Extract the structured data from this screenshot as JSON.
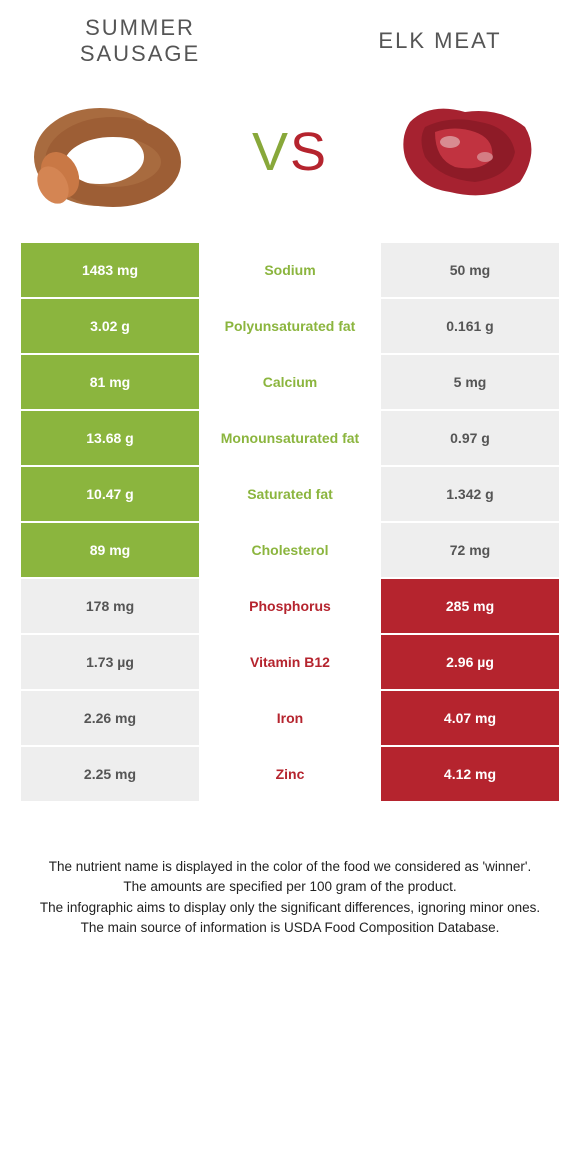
{
  "header": {
    "left_title": "Summer sausage",
    "right_title": "Elk meat",
    "vs_v": "V",
    "vs_s": "S"
  },
  "colors": {
    "green": "#8bb53e",
    "red": "#b5242e",
    "gray": "#eeeeee",
    "gray_text": "#555555",
    "white": "#ffffff"
  },
  "rows": [
    {
      "left": "1483 mg",
      "label": "Sodium",
      "right": "50 mg",
      "left_bg": "green",
      "right_bg": "gray",
      "label_color": "green"
    },
    {
      "left": "3.02 g",
      "label": "Polyunsaturated fat",
      "right": "0.161 g",
      "left_bg": "green",
      "right_bg": "gray",
      "label_color": "green"
    },
    {
      "left": "81 mg",
      "label": "Calcium",
      "right": "5 mg",
      "left_bg": "green",
      "right_bg": "gray",
      "label_color": "green"
    },
    {
      "left": "13.68 g",
      "label": "Monounsaturated fat",
      "right": "0.97 g",
      "left_bg": "green",
      "right_bg": "gray",
      "label_color": "green"
    },
    {
      "left": "10.47 g",
      "label": "Saturated fat",
      "right": "1.342 g",
      "left_bg": "green",
      "right_bg": "gray",
      "label_color": "green"
    },
    {
      "left": "89 mg",
      "label": "Cholesterol",
      "right": "72 mg",
      "left_bg": "green",
      "right_bg": "gray",
      "label_color": "green"
    },
    {
      "left": "178 mg",
      "label": "Phosphorus",
      "right": "285 mg",
      "left_bg": "gray",
      "right_bg": "red",
      "label_color": "red"
    },
    {
      "left": "1.73 µg",
      "label": "Vitamin B12",
      "right": "2.96 µg",
      "left_bg": "gray",
      "right_bg": "red",
      "label_color": "red"
    },
    {
      "left": "2.26 mg",
      "label": "Iron",
      "right": "4.07 mg",
      "left_bg": "gray",
      "right_bg": "red",
      "label_color": "red"
    },
    {
      "left": "2.25 mg",
      "label": "Zinc",
      "right": "4.12 mg",
      "left_bg": "gray",
      "right_bg": "red",
      "label_color": "red"
    }
  ],
  "footer": {
    "line1": "The nutrient name is displayed in the color of the food we considered as 'winner'.",
    "line2": "The amounts are specified per 100 gram of the product.",
    "line3": "The infographic aims to display only the significant differences, ignoring minor ones.",
    "line4": "The main source of information is USDA Food Composition Database."
  }
}
